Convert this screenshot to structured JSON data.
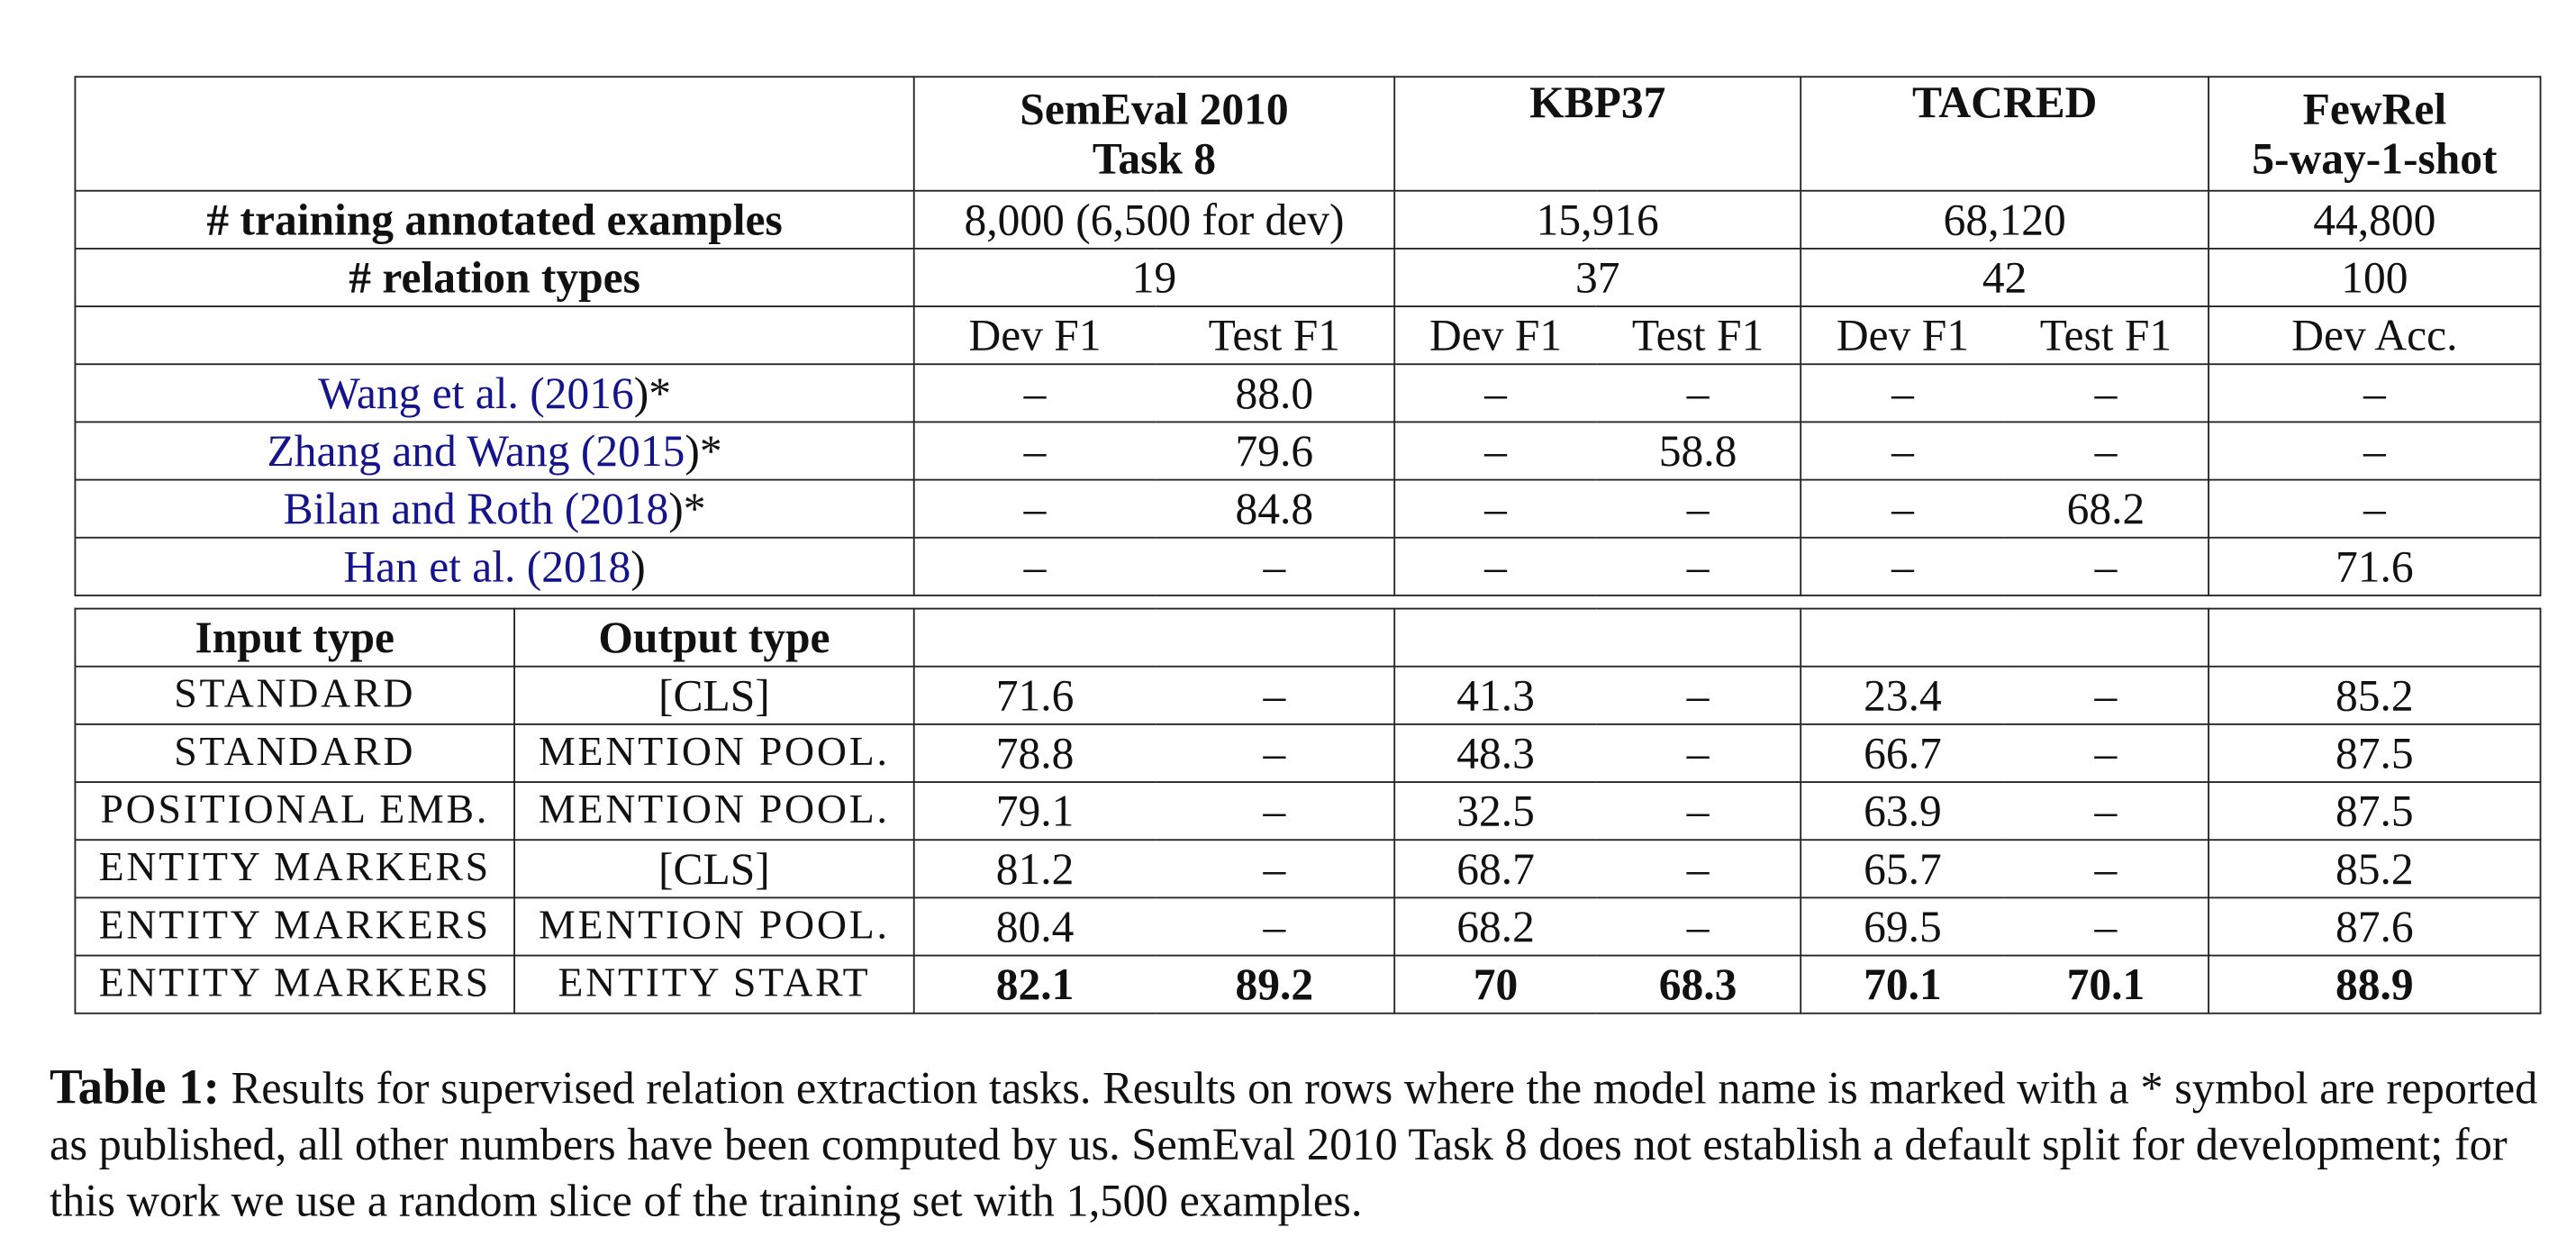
{
  "datasets": [
    {
      "name": "SemEval 2010",
      "name2": "Task 8"
    },
    {
      "name": "KBP37"
    },
    {
      "name": "TACRED"
    },
    {
      "name": "FewRel",
      "name2": "5-way-1-shot"
    }
  ],
  "stats": {
    "training_label": "# training annotated examples",
    "training_values": [
      "8,000 (6,500 for dev)",
      "15,916",
      "68,120",
      "44,800"
    ],
    "relation_label": "# relation types",
    "relation_values": [
      "19",
      "37",
      "42",
      "100"
    ]
  },
  "metrics": [
    "Dev F1",
    "Test F1",
    "Dev F1",
    "Test F1",
    "Dev F1",
    "Test F1",
    "Dev Acc."
  ],
  "published": [
    {
      "authors": "Wang et al. (",
      "year": "2016",
      "close": ")*",
      "values": [
        "–",
        "88.0",
        "–",
        "–",
        "–",
        "–",
        "–"
      ]
    },
    {
      "authors": "Zhang and Wang (",
      "year": "2015",
      "close": ")*",
      "values": [
        "–",
        "79.6",
        "–",
        "58.8",
        "–",
        "–",
        "–"
      ]
    },
    {
      "authors": "Bilan and Roth (",
      "year": "2018",
      "close": ")*",
      "values": [
        "–",
        "84.8",
        "–",
        "–",
        "–",
        "68.2",
        "–"
      ]
    },
    {
      "authors": "Han et al. (",
      "year": "2018",
      "close": ")",
      "values": [
        "–",
        "–",
        "–",
        "–",
        "–",
        "–",
        "71.6"
      ]
    }
  ],
  "variants_header": {
    "input": "Input type",
    "output": "Output type"
  },
  "variants": [
    {
      "input": "STANDARD",
      "output": "[CLS]",
      "values": [
        "71.6",
        "–",
        "41.3",
        "–",
        "23.4",
        "–",
        "85.2"
      ]
    },
    {
      "input": "STANDARD",
      "output": "MENTION POOL.",
      "values": [
        "78.8",
        "–",
        "48.3",
        "–",
        "66.7",
        "–",
        "87.5"
      ]
    },
    {
      "input": "POSITIONAL EMB.",
      "output": "MENTION POOL.",
      "values": [
        "79.1",
        "–",
        "32.5",
        "–",
        "63.9",
        "–",
        "87.5"
      ]
    },
    {
      "input": "ENTITY MARKERS",
      "output": "[CLS]",
      "values": [
        "81.2",
        "–",
        "68.7",
        "–",
        "65.7",
        "–",
        "85.2"
      ]
    },
    {
      "input": "ENTITY MARKERS",
      "output": "MENTION POOL.",
      "values": [
        "80.4",
        "–",
        "68.2",
        "–",
        "69.5",
        "–",
        "87.6"
      ]
    },
    {
      "input": "ENTITY MARKERS",
      "output": "ENTITY START",
      "values": [
        "82.1",
        "89.2",
        "70",
        "68.3",
        "70.1",
        "70.1",
        "88.9"
      ],
      "bold": true
    }
  ],
  "caption": {
    "label": "Table 1:",
    "text": "Results for supervised relation extraction tasks. Results on rows where the model name is marked with a * symbol are reported as published, all other numbers have been computed by us. SemEval 2010 Task 8 does not establish a default split for development; for this work we use a random slice of the training set with 1,500 examples."
  },
  "colors": {
    "citation": "#14148c",
    "text": "#111111",
    "rule": "#222222"
  }
}
